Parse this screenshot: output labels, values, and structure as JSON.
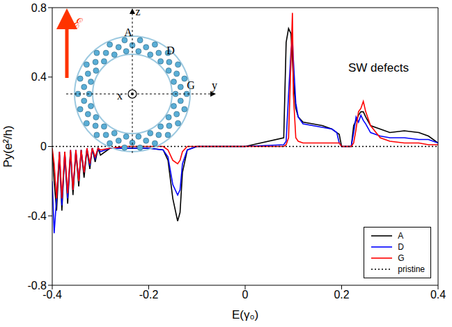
{
  "chart_data": {
    "type": "line",
    "x_label": "E(γ₀)",
    "y_label": "Py(e²/h)",
    "annotations": [
      "SW defects"
    ],
    "inset_labels": [
      "z",
      "A",
      "D",
      "G",
      "y",
      "x",
      "ℰ"
    ],
    "xlim": [
      -0.4,
      0.4
    ],
    "xticks": [
      -0.4,
      -0.2,
      0,
      0.2,
      0.4
    ],
    "ylim": [
      -0.8,
      0.8
    ],
    "yticks": [
      -0.8,
      -0.4,
      0,
      0.4,
      0.8
    ],
    "legend": "bottom right",
    "x": [
      -0.4,
      -0.396,
      -0.391,
      -0.385,
      -0.38,
      -0.374,
      -0.368,
      -0.362,
      -0.357,
      -0.351,
      -0.345,
      -0.34,
      -0.334,
      -0.328,
      -0.322,
      -0.317,
      -0.311,
      -0.305,
      -0.3,
      -0.28,
      -0.25,
      -0.2,
      -0.17,
      -0.16,
      -0.15,
      -0.14,
      -0.135,
      -0.13,
      -0.12,
      -0.1,
      0,
      0.08,
      0.085,
      0.09,
      0.095,
      0.098,
      0.1,
      0.105,
      0.11,
      0.12,
      0.14,
      0.16,
      0.18,
      0.19,
      0.195,
      0.2,
      0.22,
      0.225,
      0.23,
      0.235,
      0.24,
      0.245,
      0.25,
      0.26,
      0.28,
      0.3,
      0.33,
      0.36,
      0.38,
      0.4
    ],
    "series": [
      {
        "name": "A",
        "color": "#000000",
        "line_style": "solid",
        "values": [
          -0.02,
          -0.2,
          -0.37,
          -0.05,
          -0.37,
          -0.04,
          -0.33,
          -0.03,
          -0.28,
          -0.03,
          -0.23,
          -0.02,
          -0.18,
          -0.02,
          -0.13,
          -0.01,
          -0.09,
          -0.01,
          -0.05,
          -0.01,
          -0.01,
          -0.01,
          -0.02,
          -0.08,
          -0.3,
          -0.43,
          -0.38,
          -0.15,
          -0.02,
          0,
          0,
          0.05,
          0.6,
          0.68,
          0.65,
          0.5,
          0.38,
          0.22,
          0.17,
          0.14,
          0.13,
          0.12,
          0.1,
          0.08,
          0.07,
          0,
          0,
          0.12,
          0.15,
          0.18,
          0.2,
          0.2,
          0.17,
          0.12,
          0.1,
          0.08,
          0.09,
          0.08,
          0.06,
          0.02
        ]
      },
      {
        "name": "D",
        "color": "#0000ff",
        "line_style": "solid",
        "values": [
          -0.2,
          -0.5,
          -0.3,
          -0.03,
          -0.34,
          -0.03,
          -0.3,
          -0.02,
          -0.25,
          -0.02,
          -0.2,
          -0.02,
          -0.15,
          -0.01,
          -0.11,
          -0.01,
          -0.07,
          -0.01,
          -0.03,
          -0.01,
          -0.01,
          -0.01,
          -0.02,
          -0.06,
          -0.22,
          -0.28,
          -0.25,
          -0.1,
          -0.02,
          0,
          0,
          0.01,
          0.03,
          0.3,
          0.55,
          0.62,
          0.5,
          0.25,
          0.17,
          0.13,
          0.12,
          0.11,
          0.1,
          0.08,
          0.02,
          0,
          0,
          0.08,
          0.17,
          0.14,
          0.18,
          0.15,
          0.13,
          0.08,
          0.06,
          0.05,
          0.05,
          0.04,
          0.04,
          0.02
        ]
      },
      {
        "name": "G",
        "color": "#ff0000",
        "line_style": "solid",
        "values": [
          -0.01,
          -0.1,
          -0.3,
          -0.03,
          -0.3,
          -0.03,
          -0.27,
          -0.02,
          -0.25,
          -0.02,
          -0.2,
          -0.02,
          -0.15,
          -0.01,
          -0.1,
          -0.01,
          -0.06,
          -0.01,
          -0.02,
          -0.01,
          0,
          0,
          0,
          -0.02,
          -0.08,
          -0.1,
          -0.08,
          -0.03,
          0,
          0,
          0,
          0,
          0.01,
          0.05,
          0.5,
          0.77,
          0.3,
          0.05,
          0.03,
          0.02,
          0.02,
          0.02,
          0.02,
          0.02,
          0.02,
          0,
          0,
          0.02,
          0.1,
          0.2,
          0.22,
          0.26,
          0.2,
          0.12,
          0.05,
          0.03,
          0.02,
          0.02,
          0.01,
          0.01
        ]
      },
      {
        "name": "pristine",
        "color": "#000000",
        "line_style": "dotted",
        "values": [
          0,
          0,
          0,
          0,
          0,
          0,
          0,
          0,
          0,
          0,
          0,
          0,
          0,
          0,
          0,
          0,
          0,
          0,
          0,
          0,
          0,
          0,
          0,
          0,
          0,
          0,
          0,
          0,
          0,
          0,
          0,
          0,
          0,
          0,
          0,
          0,
          0,
          0,
          0,
          0,
          0,
          0,
          0,
          0,
          0,
          0,
          0,
          0,
          0,
          0,
          0,
          0,
          0,
          0,
          0,
          0,
          0,
          0,
          0,
          0
        ]
      }
    ]
  }
}
